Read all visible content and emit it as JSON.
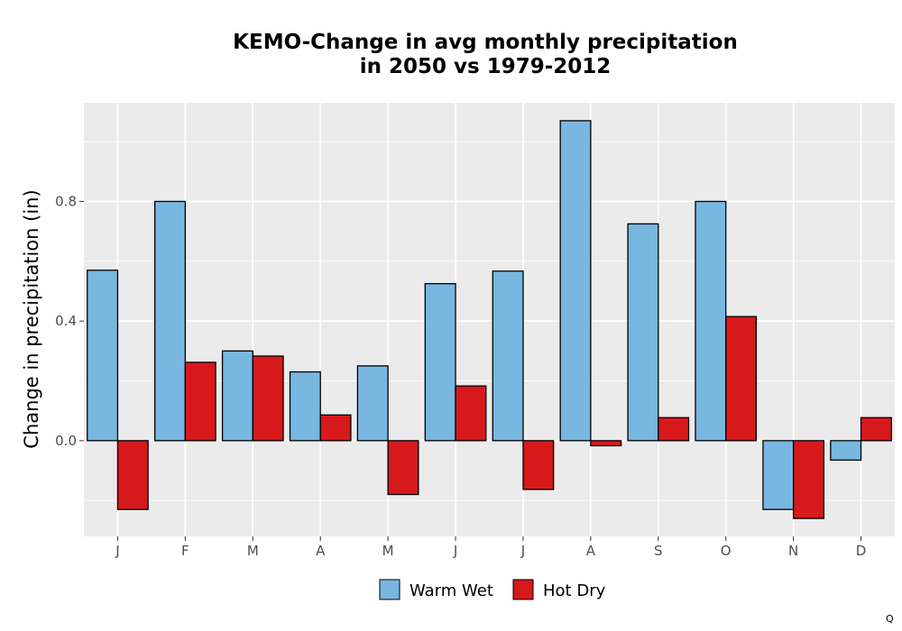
{
  "chart_data": {
    "type": "bar",
    "title_lines": [
      "KEMO-Change in avg monthly precipitation",
      "in 2050 vs 1979-2012"
    ],
    "xlabel": "",
    "ylabel": "Change in precipitation (in)",
    "categories": [
      "J",
      "F",
      "M",
      "A",
      "M",
      "J",
      "J",
      "A",
      "S",
      "O",
      "N",
      "D"
    ],
    "series": [
      {
        "name": "Warm Wet",
        "color": "#78b7e0",
        "values": [
          0.57,
          0.8,
          0.3,
          0.23,
          0.25,
          0.525,
          0.567,
          1.07,
          0.725,
          0.8,
          -0.23,
          -0.065
        ]
      },
      {
        "name": "Hot Dry",
        "color": "#d7191c",
        "values": [
          -0.23,
          0.262,
          0.283,
          0.086,
          -0.18,
          0.183,
          -0.163,
          -0.017,
          0.077,
          0.415,
          -0.26,
          0.077
        ]
      }
    ],
    "yticks": [
      0.0,
      0.4,
      0.8
    ],
    "ytick_labels": [
      "0.0",
      "0.4",
      "0.8"
    ],
    "ylim": [
      -0.32,
      1.13
    ],
    "grid": true,
    "panel_background": "#ebebeb",
    "legend_position": "bottom"
  },
  "corner_mark": "Q"
}
